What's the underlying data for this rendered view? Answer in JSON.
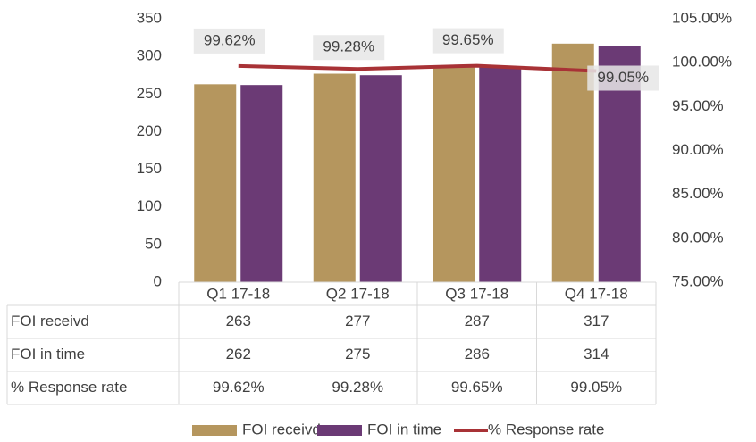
{
  "chart_data": {
    "type": "bar",
    "categories": [
      "Q1 17-18",
      "Q2 17-18",
      "Q3 17-18",
      "Q4 17-18"
    ],
    "series": [
      {
        "name": "FOI receivd",
        "color": "#b5965e",
        "values": [
          263,
          277,
          287,
          317
        ]
      },
      {
        "name": "FOI in time",
        "color": "#6b3a75",
        "values": [
          262,
          275,
          286,
          314
        ]
      },
      {
        "name": "% Response rate",
        "type": "line",
        "axis": "y2",
        "color": "#a83236",
        "values": [
          99.62,
          99.28,
          99.65,
          99.05
        ],
        "value_labels": [
          "99.62%",
          "99.28%",
          "99.65%",
          "99.05%"
        ]
      }
    ],
    "ylim": [
      0,
      350
    ],
    "yticks": [
      0,
      50,
      100,
      150,
      200,
      250,
      300,
      350
    ],
    "y2lim": [
      75,
      105
    ],
    "y2ticks": [
      {
        "value": 75,
        "label": "75.00%"
      },
      {
        "value": 80,
        "label": "80.00%"
      },
      {
        "value": 85,
        "label": "85.00%"
      },
      {
        "value": 90,
        "label": "90.00%"
      },
      {
        "value": 95,
        "label": "95.00%"
      },
      {
        "value": 100,
        "label": "100.00%"
      },
      {
        "value": 105,
        "label": "105.00%"
      }
    ],
    "legend": "bottom",
    "data_table": true
  }
}
